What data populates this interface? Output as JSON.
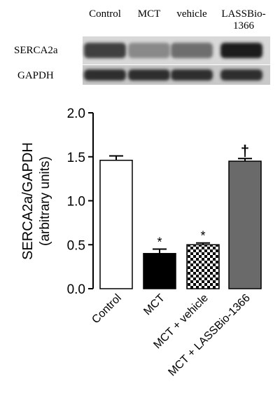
{
  "blot": {
    "lane_labels": [
      "Control",
      "MCT",
      "vehicle",
      "LASSBio-1366"
    ],
    "rows": [
      {
        "label": "SERCA2a",
        "intensity": [
          0.75,
          0.35,
          0.5,
          0.95
        ]
      },
      {
        "label": "GAPDH",
        "intensity": [
          0.85,
          0.85,
          0.85,
          0.85
        ]
      }
    ]
  },
  "chart_data": {
    "type": "bar",
    "title": "",
    "ylabel": [
      "SERCA2a/GAPDH",
      "(arbitrary units)"
    ],
    "xlabel": "",
    "ylim": [
      0,
      2.0
    ],
    "yticks": [
      0.0,
      0.5,
      1.0,
      1.5,
      2.0
    ],
    "ytick_labels": [
      "0.0",
      "0.5",
      "1.0",
      "1.5",
      "2.0"
    ],
    "categories": [
      "Control",
      "MCT",
      "MCT + vehicle",
      "MCT + LASSBio-1366"
    ],
    "values": [
      1.46,
      0.4,
      0.5,
      1.45
    ],
    "errors": [
      0.05,
      0.05,
      0.02,
      0.03
    ],
    "significance": [
      "",
      "*",
      "*",
      "†"
    ],
    "fills": [
      "#ffffff",
      "#000000",
      "checker",
      "#6a6a6a"
    ]
  }
}
